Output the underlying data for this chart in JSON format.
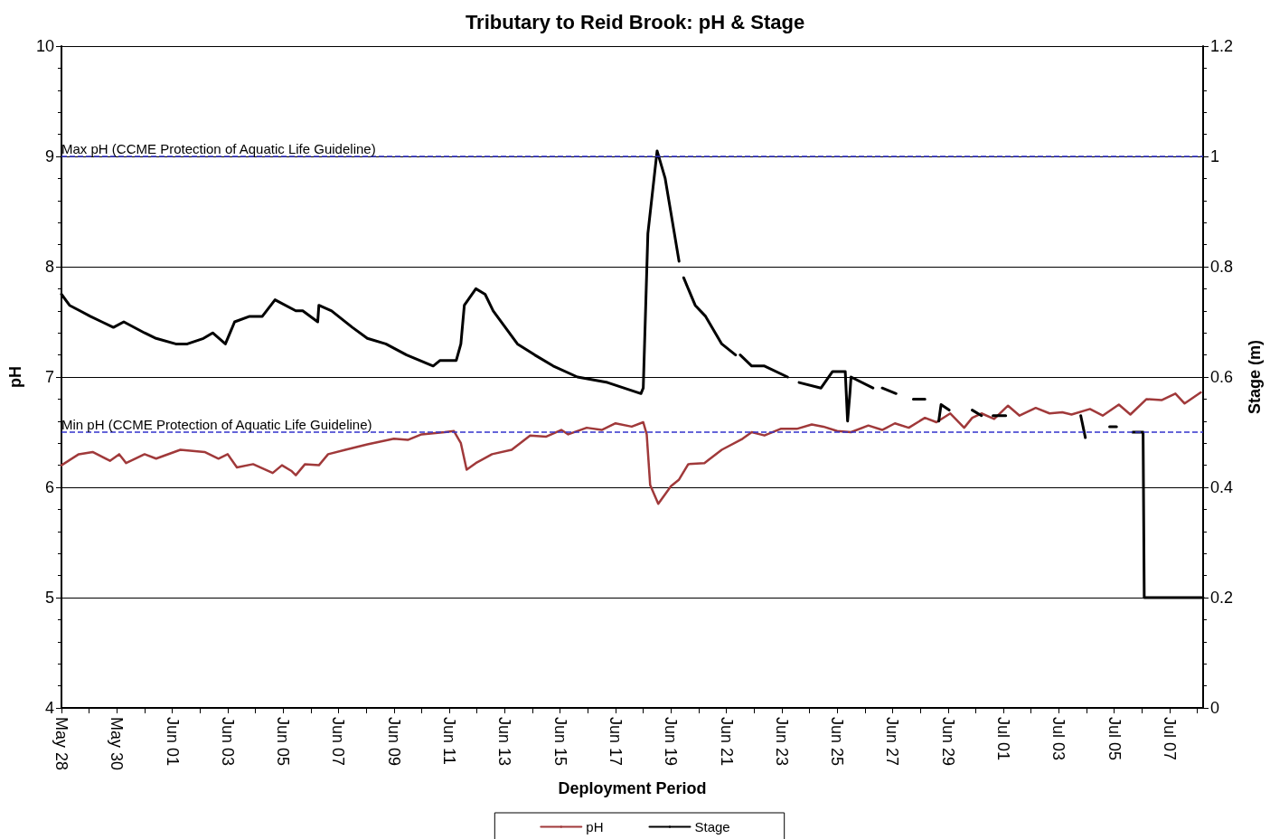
{
  "chart_data": {
    "type": "line",
    "title": "Tributary to Reid Brook: pH & Stage",
    "xlabel": "Deployment Period",
    "ylabel": "pH",
    "y2label": "Stage (m)",
    "xlim": [
      "--05-28",
      "--07-08T05:00"
    ],
    "xticks": [
      {
        "value": "--05-28",
        "label": "May 28"
      },
      {
        "value": "--05-29",
        "label": null
      },
      {
        "value": "--05-30",
        "label": "May 30"
      },
      {
        "value": "--05-31",
        "label": null
      },
      {
        "value": "--06-01",
        "label": "Jun 01"
      },
      {
        "value": "--06-02",
        "label": null
      },
      {
        "value": "--06-03",
        "label": "Jun 03"
      },
      {
        "value": "--06-04",
        "label": null
      },
      {
        "value": "--06-05",
        "label": "Jun 05"
      },
      {
        "value": "--06-06",
        "label": null
      },
      {
        "value": "--06-07",
        "label": "Jun 07"
      },
      {
        "value": "--06-08",
        "label": null
      },
      {
        "value": "--06-09",
        "label": "Jun 09"
      },
      {
        "value": "--06-10",
        "label": null
      },
      {
        "value": "--06-11",
        "label": "Jun 11"
      },
      {
        "value": "--06-12",
        "label": null
      },
      {
        "value": "--06-13",
        "label": "Jun 13"
      },
      {
        "value": "--06-14",
        "label": null
      },
      {
        "value": "--06-15",
        "label": "Jun 15"
      },
      {
        "value": "--06-16",
        "label": null
      },
      {
        "value": "--06-17",
        "label": "Jun 17"
      },
      {
        "value": "--06-18",
        "label": null
      },
      {
        "value": "--06-19",
        "label": "Jun 19"
      },
      {
        "value": "--06-20",
        "label": null
      },
      {
        "value": "--06-21",
        "label": "Jun 21"
      },
      {
        "value": "--06-22",
        "label": null
      },
      {
        "value": "--06-23",
        "label": "Jun 23"
      },
      {
        "value": "--06-24",
        "label": null
      },
      {
        "value": "--06-25",
        "label": "Jun 25"
      },
      {
        "value": "--06-26",
        "label": null
      },
      {
        "value": "--06-27",
        "label": "Jun 27"
      },
      {
        "value": "--06-28",
        "label": null
      },
      {
        "value": "--06-29",
        "label": "Jun 29"
      },
      {
        "value": "--06-30",
        "label": null
      },
      {
        "value": "--07-01",
        "label": "Jul 01"
      },
      {
        "value": "--07-02",
        "label": null
      },
      {
        "value": "--07-03",
        "label": "Jul 03"
      },
      {
        "value": "--07-04",
        "label": null
      },
      {
        "value": "--07-05",
        "label": "Jul 05"
      },
      {
        "value": "--07-06",
        "label": null
      },
      {
        "value": "--07-07",
        "label": "Jul 07"
      },
      {
        "value": "--07-08",
        "label": null
      }
    ],
    "ylim": [
      4,
      10
    ],
    "yticks": [
      4,
      5,
      6,
      7,
      8,
      9,
      10
    ],
    "y2lim": [
      0,
      1.2
    ],
    "y2ticks": [
      0,
      0.2,
      0.4,
      0.6,
      0.8,
      1,
      1.2
    ],
    "grid": "y",
    "legend": "bottom",
    "marker": "none",
    "line_style": "solid",
    "ref_lines": [
      {
        "axis": "y",
        "value": 9,
        "label": "Max pH (CCME Protection of Aquatic Life Guideline)",
        "color": "#3333cc",
        "line_style": "dashed"
      },
      {
        "axis": "y",
        "value": 6.5,
        "label": "Min pH (CCME Protection of Aquatic Life Guideline)",
        "color": "#3333cc",
        "line_style": "dashed"
      }
    ],
    "series": [
      {
        "name": "pH",
        "color": "#a0393a",
        "x": [
          "--05-28T00:00",
          "--05-28T15:00",
          "--05-29T03:00",
          "--05-29T18:00",
          "--05-30T02:00",
          "--05-30T08:00",
          "--05-31T00:00",
          "--05-31T10:00",
          "--06-01T07:00",
          "--06-02T04:00",
          "--06-02T16:00",
          "--06-03T00:00",
          "--06-03T08:00",
          "--06-03T22:00",
          "--06-04T15:00",
          "--06-04T23:00",
          "--06-05T07:00",
          "--06-05T11:00",
          "--06-05T19:00",
          "--06-06T07:00",
          "--06-06T15:00",
          "--06-07T06:00",
          "--06-08T01:00",
          "--06-09T00:00",
          "--06-09T12:00",
          "--06-10T00:00",
          "--06-10T20:00",
          "--06-11T04:00",
          "--06-11T10:00",
          "--06-11T15:00",
          "--06-11T23:00",
          "--06-12T13:00",
          "--06-13T06:00",
          "--06-13T22:00",
          "--06-14T12:00",
          "--06-15T01:00",
          "--06-15T07:00",
          "--06-15T23:00",
          "--06-16T12:00",
          "--06-17T00:00",
          "--06-17T14:00",
          "--06-18T00:00",
          "--06-18T03:00",
          "--06-18T06:00",
          "--06-18T13:00",
          "--06-19T00:00",
          "--06-19T07:00",
          "--06-19T15:00",
          "--06-20T05:00",
          "--06-20T20:00",
          "--06-21T14:00",
          "--06-21T22:00",
          "--06-22T09:00",
          "--06-22T23:00",
          "--06-23T13:00",
          "--06-24T02:00",
          "--06-24T12:00",
          "--06-25T00:00",
          "--06-25T12:00",
          "--06-26T03:00",
          "--06-26T15:00",
          "--06-27T02:00",
          "--06-27T14:00",
          "--06-28T04:00",
          "--06-28T14:00",
          "--06-29T02:00",
          "--06-29T14:00",
          "--06-29T21:00",
          "--06-30T05:00",
          "--06-30T16:00",
          "--07-01T04:00",
          "--07-01T14:00",
          "--07-02T04:00",
          "--07-02T16:00",
          "--07-03T03:00",
          "--07-03T11:00",
          "--07-04T03:00",
          "--07-04T14:00",
          "--07-05T04:00",
          "--07-05T14:00",
          "--07-06T04:00",
          "--07-06T17:00",
          "--07-07T05:00",
          "--07-07T13:00",
          "--07-08T03:00"
        ],
        "values": [
          6.2,
          6.3,
          6.32,
          6.24,
          6.3,
          6.22,
          6.3,
          6.26,
          6.34,
          6.32,
          6.26,
          6.3,
          6.18,
          6.21,
          6.13,
          6.2,
          6.15,
          6.11,
          6.21,
          6.2,
          6.3,
          6.34,
          6.39,
          6.44,
          6.43,
          6.48,
          6.5,
          6.51,
          6.4,
          6.16,
          6.22,
          6.3,
          6.34,
          6.47,
          6.46,
          6.52,
          6.48,
          6.54,
          6.52,
          6.58,
          6.55,
          6.59,
          6.48,
          6.02,
          5.85,
          6.01,
          6.07,
          6.21,
          6.22,
          6.34,
          6.44,
          6.5,
          6.47,
          6.53,
          6.53,
          6.57,
          6.55,
          6.51,
          6.5,
          6.56,
          6.52,
          6.58,
          6.54,
          6.63,
          6.59,
          6.67,
          6.54,
          6.63,
          6.67,
          6.62,
          6.74,
          6.65,
          6.72,
          6.67,
          6.68,
          6.66,
          6.71,
          6.65,
          6.75,
          6.66,
          6.8,
          6.79,
          6.85,
          6.76,
          6.86
        ]
      },
      {
        "name": "Stage",
        "color": "#000000",
        "axis": "y2",
        "x": [
          "--05-28T00:00",
          "--05-28T07:00",
          "--05-28T16:00",
          "--05-29T01:00",
          "--05-29T11:00",
          "--05-29T21:00",
          "--05-30T06:00",
          "--05-31T00:00",
          "--05-31T10:00",
          "--06-01T03:00",
          "--06-01T13:00",
          "--06-02T03:00",
          "--06-02T11:00",
          "--06-02T22:00",
          "--06-03T06:00",
          "--06-03T19:00",
          "--06-04T06:00",
          "--06-04T17:00",
          "--06-05T11:00",
          "--06-05T17:00",
          "--06-06T06:00",
          "--06-06T07:00",
          "--06-06T18:00",
          "--06-07T12:00",
          "--06-08T01:00",
          "--06-08T17:00",
          "--06-09T11:00",
          "--06-10T10:00",
          "--06-10T16:00",
          "--06-11T06:00",
          "--06-11T10:00",
          "--06-11T13:00",
          "--06-11T23:00",
          "--06-12T07:00",
          "--06-12T14:00",
          "--06-13T11:00",
          "--06-14T02:00",
          "--06-14T18:00",
          "--06-15T15:00",
          "--06-16T17:00",
          "--06-17T22:00",
          "--06-18T00:00",
          "--06-18T04:00",
          "--06-18T12:00",
          "--06-18T19:00",
          "--06-19T07:00",
          "--06-19T10:00",
          "--06-19T11:00",
          "--06-19T21:00",
          "--06-20T06:00",
          "--06-20T20:00",
          "--06-21T08:00",
          "--06-21T10:00",
          "--06-21T12:00",
          "--06-21T22:00",
          "--06-22T09:00",
          "--06-23T05:00",
          "--06-23T08:00",
          "--06-23T15:00",
          "--06-24T10:00",
          "--06-24T20:00",
          "--06-25T07:00",
          "--06-25T09:00",
          "--06-25T11:00",
          "--06-25T12:00",
          "--06-26T07:00",
          "--06-26T10:00",
          "--06-26T15:00",
          "--06-27T03:00",
          "--06-27T10:00",
          "--06-27T18:00",
          "--06-28T04:00",
          "--06-28T12:00",
          "--06-28T16:00",
          "--06-28T18:00",
          "--06-29T01:00",
          "--06-29T12:00",
          "--06-29T21:00",
          "--06-30T05:00",
          "--06-30T08:00",
          "--06-30T15:00",
          "--07-01T02:00",
          "--07-02T00:00",
          "--07-03T19:00",
          "--07-03T23:00",
          "--07-04T06:00",
          "--07-04T20:00",
          "--07-05T02:00",
          "--07-05T04:00",
          "--07-05T16:00",
          "--07-06T01:00",
          "--07-06T02:00",
          "--07-06T14:00",
          "--07-08T05:00"
        ],
        "values": [
          0.75,
          0.73,
          0.72,
          0.71,
          0.7,
          0.69,
          0.7,
          0.68,
          0.67,
          0.66,
          0.66,
          0.67,
          0.68,
          0.66,
          0.7,
          0.71,
          0.71,
          0.74,
          0.72,
          0.72,
          0.7,
          0.73,
          0.72,
          0.69,
          0.67,
          0.66,
          0.64,
          0.62,
          0.63,
          0.63,
          0.66,
          0.73,
          0.76,
          0.75,
          0.72,
          0.66,
          0.64,
          0.62,
          0.6,
          0.59,
          0.57,
          0.58,
          0.86,
          1.01,
          0.96,
          0.81,
          null,
          0.78,
          0.73,
          0.71,
          0.66,
          0.64,
          null,
          0.64,
          0.62,
          0.62,
          0.6,
          null,
          0.59,
          0.58,
          0.61,
          0.61,
          0.52,
          0.57,
          0.6,
          0.58,
          null,
          0.58,
          0.57,
          null,
          0.56,
          0.56,
          null,
          0.52,
          0.55,
          0.54,
          null,
          0.54,
          0.53,
          null,
          0.53,
          0.53,
          null,
          0.53,
          0.49,
          null,
          0.51,
          0.51,
          null,
          0.5,
          0.5,
          0.2,
          0.2,
          0.2
        ]
      }
    ]
  }
}
